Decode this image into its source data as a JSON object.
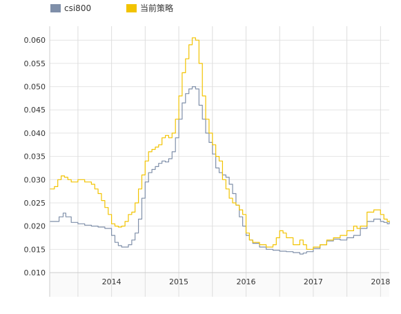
{
  "chart_data": {
    "type": "line",
    "title": "",
    "xlabel": "",
    "ylabel": "",
    "xlim": [
      2013.08,
      2018.13
    ],
    "ylim": [
      0.01,
      0.063
    ],
    "grid": true,
    "legend_position": "top-left",
    "x_ticks": [
      {
        "value": 2013.5,
        "label": ""
      },
      {
        "value": 2014.0,
        "label": "2014"
      },
      {
        "value": 2014.5,
        "label": ""
      },
      {
        "value": 2015.0,
        "label": "2015"
      },
      {
        "value": 2015.5,
        "label": ""
      },
      {
        "value": 2016.0,
        "label": "2016"
      },
      {
        "value": 2016.5,
        "label": ""
      },
      {
        "value": 2017.0,
        "label": "2017"
      },
      {
        "value": 2017.5,
        "label": ""
      },
      {
        "value": 2018.0,
        "label": "2018"
      }
    ],
    "y_ticks": [
      {
        "value": 0.01,
        "label": "0.010"
      },
      {
        "value": 0.015,
        "label": "0.015"
      },
      {
        "value": 0.02,
        "label": "0.020"
      },
      {
        "value": 0.025,
        "label": "0.025"
      },
      {
        "value": 0.03,
        "label": "0.030"
      },
      {
        "value": 0.035,
        "label": "0.035"
      },
      {
        "value": 0.04,
        "label": "0.040"
      },
      {
        "value": 0.045,
        "label": "0.045"
      },
      {
        "value": 0.05,
        "label": "0.050"
      },
      {
        "value": 0.055,
        "label": "0.055"
      },
      {
        "value": 0.06,
        "label": "0.060"
      }
    ],
    "series": [
      {
        "name": "csi800",
        "color": "#7f8fa9",
        "x": [
          2013.08,
          2013.15,
          2013.22,
          2013.28,
          2013.32,
          2013.4,
          2013.5,
          2013.6,
          2013.7,
          2013.8,
          2013.9,
          2014.0,
          2014.05,
          2014.1,
          2014.15,
          2014.2,
          2014.25,
          2014.3,
          2014.35,
          2014.4,
          2014.45,
          2014.5,
          2014.55,
          2014.6,
          2014.65,
          2014.7,
          2014.75,
          2014.8,
          2014.85,
          2014.9,
          2014.95,
          2015.0,
          2015.05,
          2015.1,
          2015.15,
          2015.2,
          2015.25,
          2015.3,
          2015.35,
          2015.4,
          2015.45,
          2015.5,
          2015.55,
          2015.6,
          2015.65,
          2015.7,
          2015.75,
          2015.8,
          2015.85,
          2015.9,
          2015.95,
          2016.0,
          2016.05,
          2016.1,
          2016.2,
          2016.3,
          2016.4,
          2016.5,
          2016.6,
          2016.7,
          2016.8,
          2016.85,
          2016.9,
          2017.0,
          2017.1,
          2017.2,
          2017.3,
          2017.4,
          2017.5,
          2017.6,
          2017.7,
          2017.8,
          2017.9,
          2018.0,
          2018.05,
          2018.1,
          2018.13
        ],
        "values": [
          0.021,
          0.021,
          0.022,
          0.0228,
          0.022,
          0.0208,
          0.0205,
          0.0202,
          0.02,
          0.0198,
          0.0195,
          0.018,
          0.0165,
          0.0158,
          0.0155,
          0.0155,
          0.016,
          0.017,
          0.0185,
          0.0215,
          0.026,
          0.0295,
          0.0315,
          0.0322,
          0.0328,
          0.0335,
          0.034,
          0.0338,
          0.0345,
          0.036,
          0.039,
          0.043,
          0.0465,
          0.0485,
          0.0495,
          0.05,
          0.0495,
          0.046,
          0.043,
          0.04,
          0.038,
          0.0355,
          0.0325,
          0.0315,
          0.031,
          0.0305,
          0.029,
          0.027,
          0.0245,
          0.022,
          0.02,
          0.018,
          0.017,
          0.0163,
          0.0155,
          0.015,
          0.0148,
          0.0146,
          0.0145,
          0.0143,
          0.014,
          0.0142,
          0.0145,
          0.0152,
          0.016,
          0.0168,
          0.0172,
          0.017,
          0.0175,
          0.018,
          0.0195,
          0.021,
          0.0215,
          0.021,
          0.0208,
          0.0205,
          0.021
        ]
      },
      {
        "name": "当前策略",
        "color": "#f2c300",
        "x": [
          2013.08,
          2013.15,
          2013.2,
          2013.25,
          2013.3,
          2013.35,
          2013.4,
          2013.5,
          2013.6,
          2013.7,
          2013.75,
          2013.8,
          2013.85,
          2013.9,
          2013.95,
          2014.0,
          2014.05,
          2014.1,
          2014.15,
          2014.2,
          2014.25,
          2014.3,
          2014.35,
          2014.4,
          2014.45,
          2014.5,
          2014.55,
          2014.6,
          2014.65,
          2014.7,
          2014.75,
          2014.8,
          2014.85,
          2014.9,
          2014.95,
          2015.0,
          2015.05,
          2015.1,
          2015.15,
          2015.2,
          2015.25,
          2015.3,
          2015.35,
          2015.4,
          2015.45,
          2015.5,
          2015.55,
          2015.6,
          2015.65,
          2015.7,
          2015.75,
          2015.8,
          2015.85,
          2015.9,
          2015.95,
          2016.0,
          2016.05,
          2016.1,
          2016.2,
          2016.3,
          2016.4,
          2016.45,
          2016.5,
          2016.55,
          2016.6,
          2016.7,
          2016.8,
          2016.85,
          2016.9,
          2017.0,
          2017.1,
          2017.2,
          2017.3,
          2017.4,
          2017.5,
          2017.6,
          2017.65,
          2017.7,
          2017.8,
          2017.9,
          2018.0,
          2018.05,
          2018.1,
          2018.13
        ],
        "values": [
          0.028,
          0.0285,
          0.03,
          0.0308,
          0.0305,
          0.03,
          0.0295,
          0.03,
          0.0295,
          0.029,
          0.028,
          0.027,
          0.0255,
          0.024,
          0.0225,
          0.0205,
          0.02,
          0.0198,
          0.02,
          0.021,
          0.0225,
          0.023,
          0.025,
          0.028,
          0.031,
          0.034,
          0.036,
          0.0365,
          0.037,
          0.0375,
          0.039,
          0.0395,
          0.039,
          0.04,
          0.043,
          0.048,
          0.053,
          0.056,
          0.059,
          0.0605,
          0.06,
          0.055,
          0.048,
          0.043,
          0.04,
          0.0375,
          0.035,
          0.034,
          0.03,
          0.028,
          0.026,
          0.025,
          0.0245,
          0.0235,
          0.0225,
          0.0185,
          0.017,
          0.0165,
          0.016,
          0.0155,
          0.016,
          0.0175,
          0.019,
          0.0185,
          0.0175,
          0.016,
          0.017,
          0.016,
          0.015,
          0.0155,
          0.016,
          0.017,
          0.0175,
          0.018,
          0.019,
          0.02,
          0.0195,
          0.02,
          0.023,
          0.0235,
          0.0225,
          0.0215,
          0.021,
          0.0212
        ]
      }
    ]
  }
}
